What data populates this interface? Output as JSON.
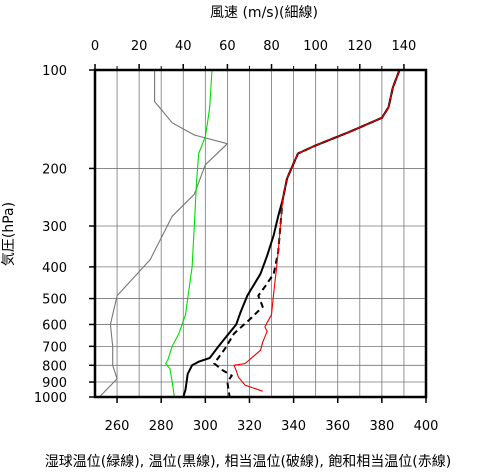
{
  "chart_data": {
    "type": "line",
    "top_axis": {
      "label": "風速 (m/s)(細線)",
      "range": [
        0,
        150
      ],
      "ticks": [
        0,
        20,
        40,
        60,
        80,
        100,
        120,
        140
      ],
      "tick_labels": [
        "0",
        "20",
        "40",
        "60",
        "80",
        "100",
        "120",
        "140"
      ]
    },
    "bottom_axis": {
      "label": "湿球温位(緑線), 温位(黒線), 相当温位(破線), 飽和相当温位(赤線)",
      "range": [
        250,
        400
      ],
      "ticks": [
        260,
        280,
        300,
        320,
        340,
        360,
        380,
        400
      ],
      "tick_labels": [
        "260",
        "280",
        "300",
        "320",
        "340",
        "360",
        "380",
        "400"
      ]
    },
    "y_axis": {
      "label": "気圧(hPa)",
      "scale": "log",
      "inverted": true,
      "range": [
        100,
        1000
      ],
      "ticks": [
        100,
        200,
        300,
        400,
        500,
        600,
        700,
        800,
        900,
        1000
      ],
      "tick_labels": [
        "100",
        "200",
        "300",
        "400",
        "500",
        "600",
        "700",
        "800",
        "900",
        "1000"
      ]
    },
    "grid": true,
    "series": [
      {
        "key": "wind_speed",
        "axis": "top",
        "color": "#777777",
        "style": "thin",
        "points": [
          [
            27,
            100
          ],
          [
            27,
            125
          ],
          [
            30,
            132
          ],
          [
            35,
            145
          ],
          [
            45,
            158
          ],
          [
            60,
            168
          ],
          [
            50,
            195
          ],
          [
            45,
            240
          ],
          [
            35,
            280
          ],
          [
            25,
            380
          ],
          [
            10,
            490
          ],
          [
            7,
            600
          ],
          [
            8,
            700
          ],
          [
            8,
            800
          ],
          [
            10,
            880
          ],
          [
            2,
            1000
          ]
        ]
      },
      {
        "key": "wet_bulb_potential_temperature",
        "axis": "bottom",
        "color": "#00dd00",
        "style": "solid",
        "points": [
          [
            303,
            100
          ],
          [
            302,
            130
          ],
          [
            301,
            145
          ],
          [
            300,
            160
          ],
          [
            297,
            180
          ],
          [
            296,
            220
          ],
          [
            295,
            300
          ],
          [
            294,
            400
          ],
          [
            292,
            500
          ],
          [
            291,
            560
          ],
          [
            288,
            640
          ],
          [
            285,
            700
          ],
          [
            283,
            770
          ],
          [
            282,
            790
          ],
          [
            284,
            820
          ],
          [
            285,
            900
          ],
          [
            286,
            1000
          ]
        ]
      },
      {
        "key": "potential_temperature",
        "axis": "bottom",
        "color": "#000000",
        "style": "solid",
        "points": [
          [
            388,
            100
          ],
          [
            385,
            113
          ],
          [
            383,
            130
          ],
          [
            380,
            140
          ],
          [
            365,
            155
          ],
          [
            350,
            170
          ],
          [
            342,
            180
          ],
          [
            339,
            200
          ],
          [
            337,
            215
          ],
          [
            335,
            250
          ],
          [
            333,
            280
          ],
          [
            331,
            320
          ],
          [
            328,
            370
          ],
          [
            325,
            420
          ],
          [
            319,
            490
          ],
          [
            316,
            550
          ],
          [
            314,
            600
          ],
          [
            309,
            660
          ],
          [
            306,
            700
          ],
          [
            302,
            760
          ],
          [
            297,
            780
          ],
          [
            294,
            800
          ],
          [
            292,
            850
          ],
          [
            291,
            950
          ],
          [
            290,
            1000
          ]
        ]
      },
      {
        "key": "equivalent_potential_temperature",
        "axis": "bottom",
        "color": "#000000",
        "style": "dashed",
        "points": [
          [
            388,
            100
          ],
          [
            385,
            113
          ],
          [
            383,
            130
          ],
          [
            380,
            140
          ],
          [
            365,
            155
          ],
          [
            350,
            170
          ],
          [
            342,
            180
          ],
          [
            339,
            200
          ],
          [
            337,
            215
          ],
          [
            335,
            250
          ],
          [
            334,
            300
          ],
          [
            333,
            360
          ],
          [
            331,
            420
          ],
          [
            327,
            460
          ],
          [
            324,
            490
          ],
          [
            326,
            530
          ],
          [
            320,
            580
          ],
          [
            313,
            640
          ],
          [
            309,
            710
          ],
          [
            304,
            790
          ],
          [
            308,
            830
          ],
          [
            312,
            860
          ],
          [
            310,
            900
          ],
          [
            311,
            1000
          ]
        ]
      },
      {
        "key": "saturated_equivalent_potential_temperature",
        "axis": "bottom",
        "color": "#ee0000",
        "style": "solid",
        "points": [
          [
            388,
            100
          ],
          [
            385,
            113
          ],
          [
            383,
            130
          ],
          [
            380,
            140
          ],
          [
            365,
            155
          ],
          [
            350,
            170
          ],
          [
            342,
            180
          ],
          [
            339,
            200
          ],
          [
            337,
            215
          ],
          [
            335,
            250
          ],
          [
            334,
            300
          ],
          [
            333,
            360
          ],
          [
            332,
            420
          ],
          [
            331,
            480
          ],
          [
            330,
            560
          ],
          [
            327,
            610
          ],
          [
            328,
            630
          ],
          [
            326,
            680
          ],
          [
            325,
            720
          ],
          [
            318,
            790
          ],
          [
            313,
            800
          ],
          [
            314,
            830
          ],
          [
            315,
            870
          ],
          [
            318,
            920
          ],
          [
            326,
            960
          ]
        ]
      }
    ]
  }
}
